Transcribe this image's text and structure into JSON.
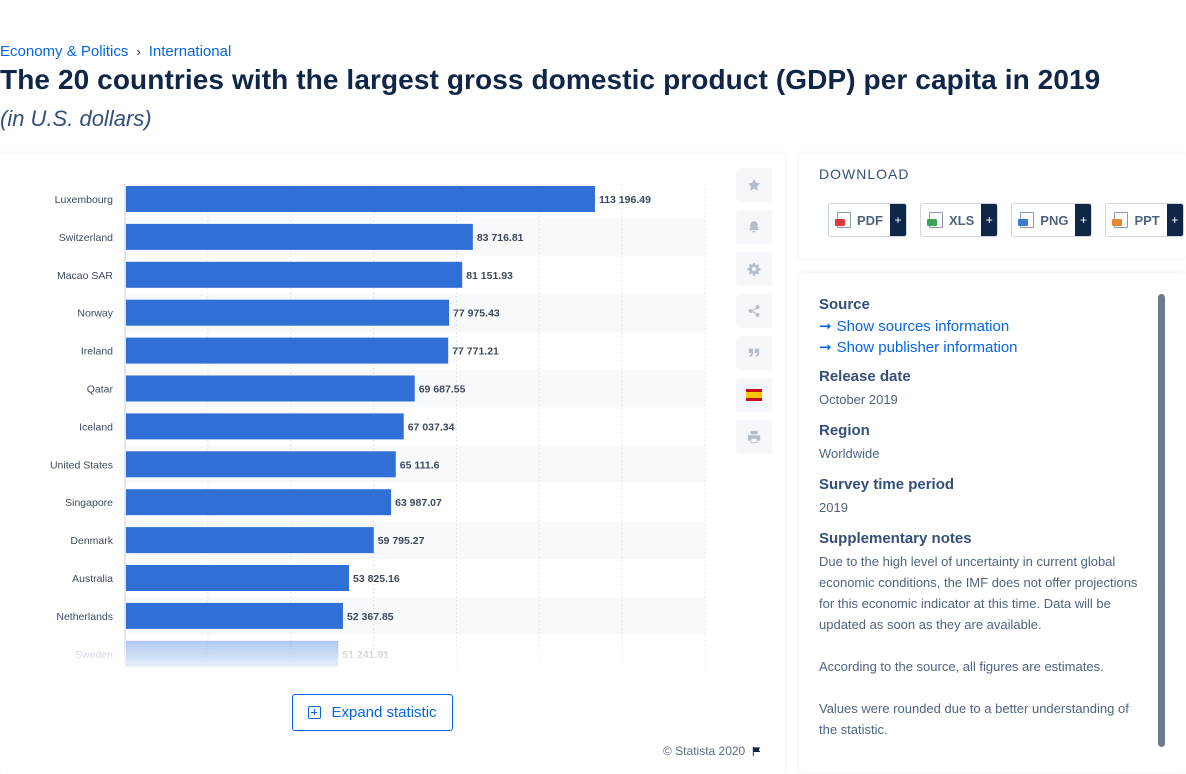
{
  "breadcrumb": {
    "first": "Economy & Politics",
    "separator": "›",
    "second": "International"
  },
  "title": "The 20 countries with the largest gross domestic product (GDP) per capita in 2019",
  "subtitle": "(in U.S. dollars)",
  "chart_data": {
    "type": "bar",
    "orientation": "horizontal",
    "categories": [
      "Luxembourg",
      "Switzerland",
      "Macao SAR",
      "Norway",
      "Ireland",
      "Qatar",
      "Iceland",
      "United States",
      "Singapore",
      "Denmark",
      "Australia",
      "Netherlands",
      "Sweden"
    ],
    "values": [
      113196.49,
      83716.81,
      81151.93,
      77975.43,
      77771.21,
      69687.55,
      67037.34,
      65111.6,
      63987.07,
      59795.27,
      53825.16,
      52367.85,
      51241.91
    ],
    "value_labels": [
      "113 196.49",
      "83 716.81",
      "81 151.93",
      "77 975.43",
      "77 771.21",
      "69 687.55",
      "67 037.34",
      "65 111.6",
      "63 987.07",
      "59 795.27",
      "53 825.16",
      "52 367.85",
      "51 241.91"
    ],
    "xlim": [
      0,
      140000
    ],
    "grid": true,
    "bar_color": "#2f6fd6"
  },
  "side_tools": [
    "star-icon",
    "bell-icon",
    "gear-icon",
    "share-icon",
    "quote-icon",
    "spanish-flag-icon",
    "print-icon"
  ],
  "expand_label": "Expand statistic",
  "copyright": "© Statista 2020",
  "download": {
    "title": "DOWNLOAD",
    "buttons": [
      {
        "label": "PDF",
        "plus": "+",
        "color": "#e03a3a"
      },
      {
        "label": "XLS",
        "plus": "+",
        "color": "#3aa655"
      },
      {
        "label": "PNG",
        "plus": "+",
        "color": "#3a7bd5"
      },
      {
        "label": "PPT",
        "plus": "+",
        "color": "#e58a2e"
      }
    ]
  },
  "info": {
    "source_label": "Source",
    "sources_link": "Show sources information",
    "publisher_link": "Show publisher information",
    "release_label": "Release date",
    "release_value": "October 2019",
    "region_label": "Region",
    "region_value": "Worldwide",
    "survey_label": "Survey time period",
    "survey_value": "2019",
    "notes_label": "Supplementary notes",
    "notes_1": "Due to the high level of uncertainty in current global economic conditions, the IMF does not offer projections for this economic indicator at this time. Data will be updated as soon as they are available.",
    "notes_2": "According to the source, all figures are estimates.",
    "notes_3": "Values were rounded due to a better understanding of the statistic."
  }
}
